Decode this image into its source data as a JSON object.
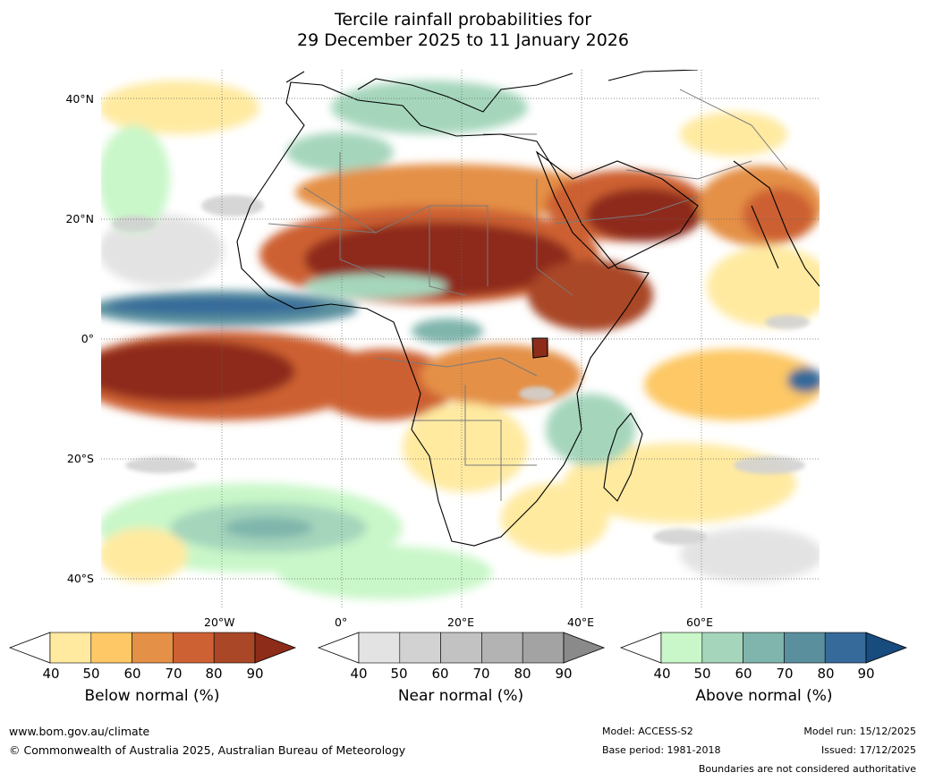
{
  "title": {
    "line1": "Tercile rainfall probabilities for",
    "line2": "29 December 2025 to 11 January 2026"
  },
  "map": {
    "lat_labels": [
      "40°N",
      "20°N",
      "0°",
      "20°S",
      "40°S"
    ],
    "lon_labels": [
      "20°W",
      "0°",
      "20°E",
      "40°E",
      "60°E"
    ]
  },
  "colorbars": [
    {
      "title": "Below normal (%)",
      "ticks": [
        "40",
        "50",
        "60",
        "70",
        "80",
        "90"
      ],
      "colors": [
        "#ffffff",
        "#ffeaa0",
        "#fdc865",
        "#e49046",
        "#cd6133",
        "#a94726",
        "#8e2c1a"
      ]
    },
    {
      "title": "Near normal (%)",
      "ticks": [
        "40",
        "50",
        "60",
        "70",
        "80",
        "90"
      ],
      "colors": [
        "#ffffff",
        "#e3e3e3",
        "#d2d2d2",
        "#c2c2c2",
        "#b3b3b3",
        "#a3a3a3",
        "#8a8a8a"
      ]
    },
    {
      "title": "Above normal (%)",
      "ticks": [
        "40",
        "50",
        "60",
        "70",
        "80",
        "90"
      ],
      "colors": [
        "#ffffff",
        "#c9f7c9",
        "#a5d6bc",
        "#7fb5ac",
        "#5a909e",
        "#356a9a",
        "#184b7e"
      ]
    }
  ],
  "footer": {
    "website": "www.bom.gov.au/climate",
    "copyright": "© Commonwealth of Australia 2025, Australian Bureau of Meteorology",
    "model": "Model: ACCESS-S2",
    "base_period": "Base period: 1981-2018",
    "model_run": "Model run: 15/12/2025",
    "issued": "Issued: 17/12/2025",
    "disclaimer": "Boundaries are not considered authoritative"
  },
  "colors": {
    "below_dark": "#8e2c1a",
    "above_dark": "#356a9a",
    "near": "#d9d9d9"
  }
}
